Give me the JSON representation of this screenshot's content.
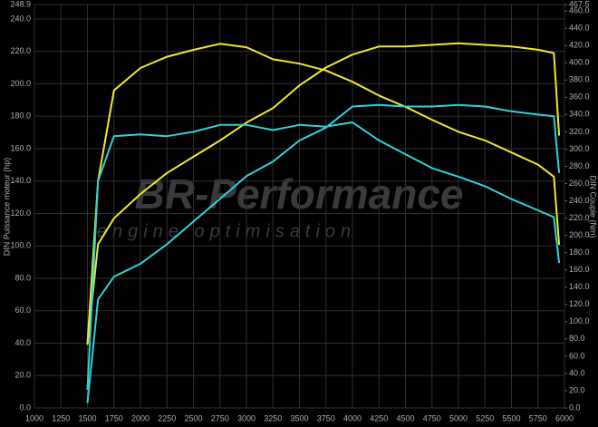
{
  "chart_data": {
    "type": "line",
    "y_label": "DIN Puissance moteur (hp)",
    "y2_label": "DIN Couple (Nm)",
    "watermark": [
      "BR-Performance",
      "engine optimisation"
    ],
    "x": [
      1500,
      1600,
      1750,
      2000,
      2250,
      2500,
      2750,
      3000,
      3250,
      3500,
      3750,
      4000,
      4250,
      4500,
      4750,
      5000,
      5250,
      5500,
      5750,
      5900,
      5950
    ],
    "series": [
      {
        "color": "#f2e829",
        "axis": "y2",
        "values": [
          74,
          263,
          368,
          394,
          407,
          415,
          422,
          418,
          404,
          399,
          391,
          378,
          362,
          349,
          334,
          320,
          310,
          296,
          282,
          268,
          189
        ]
      },
      {
        "color": "#f2e829",
        "axis": "y",
        "values": [
          39,
          101,
          117,
          132,
          145,
          155,
          165,
          176,
          185,
          199,
          210,
          218,
          223,
          223,
          224,
          225,
          224,
          223,
          221,
          219,
          168
        ]
      },
      {
        "color": "#2ed3d8",
        "axis": "y2",
        "values": [
          21,
          263,
          315,
          317,
          315,
          320,
          328,
          328,
          322,
          328,
          326,
          331,
          310,
          294,
          278,
          268,
          257,
          242,
          229,
          221,
          168
        ]
      },
      {
        "color": "#2ed3d8",
        "axis": "y",
        "values": [
          3,
          67,
          81,
          89,
          101,
          115,
          129,
          143,
          152,
          165,
          173,
          186,
          187,
          186,
          186,
          187,
          186,
          183,
          181,
          180,
          145
        ]
      }
    ],
    "xlim": [
      1000,
      6000
    ],
    "xticks": [
      1000,
      1250,
      1500,
      1750,
      2000,
      2250,
      2500,
      2750,
      3000,
      3250,
      3500,
      3750,
      4000,
      4250,
      4500,
      4750,
      5000,
      5250,
      5500,
      5750,
      6000
    ],
    "ylim": [
      0,
      248.9
    ],
    "yticks": [
      {
        "value": 0,
        "label": "0.0"
      },
      {
        "value": 20,
        "label": "20.0"
      },
      {
        "value": 40,
        "label": "40.0"
      },
      {
        "value": 60,
        "label": "60.0"
      },
      {
        "value": 80,
        "label": "80.0"
      },
      {
        "value": 100,
        "label": "100.0"
      },
      {
        "value": 120,
        "label": "120.0"
      },
      {
        "value": 140,
        "label": "140.0"
      },
      {
        "value": 160,
        "label": "160.0"
      },
      {
        "value": 180,
        "label": "180.0"
      },
      {
        "value": 200,
        "label": "200.0"
      },
      {
        "value": 220,
        "label": "220.0"
      },
      {
        "value": 240,
        "label": "240.0"
      },
      248.9
    ],
    "y2lim": [
      0,
      467.5
    ],
    "y2ticks": [
      {
        "value": 0,
        "label": "0.0"
      },
      {
        "value": 20,
        "label": "20.0"
      },
      {
        "value": 40,
        "label": "40.0"
      },
      {
        "value": 60,
        "label": "60.0"
      },
      {
        "value": 80,
        "label": "80.0"
      },
      {
        "value": 100,
        "label": "100.0"
      },
      {
        "value": 120,
        "label": "120.0"
      },
      {
        "value": 140,
        "label": "140.0"
      },
      {
        "value": 160,
        "label": "160.0"
      },
      {
        "value": 180,
        "label": "180.0"
      },
      {
        "value": 200,
        "label": "200.0"
      },
      {
        "value": 220,
        "label": "220.0"
      },
      {
        "value": 240,
        "label": "240.0"
      },
      {
        "value": 260,
        "label": "260.0"
      },
      {
        "value": 280,
        "label": "280.0"
      },
      {
        "value": 300,
        "label": "300.0"
      },
      {
        "value": 320,
        "label": "320.0"
      },
      {
        "value": 340,
        "label": "340.0"
      },
      {
        "value": 360,
        "label": "360.0"
      },
      {
        "value": 380,
        "label": "380.0"
      },
      {
        "value": 400,
        "label": "400.0"
      },
      {
        "value": 420,
        "label": "420.0"
      },
      {
        "value": 440,
        "label": "440.0"
      },
      {
        "value": 460,
        "label": "460.0"
      },
      467.5
    ],
    "grid": true
  }
}
